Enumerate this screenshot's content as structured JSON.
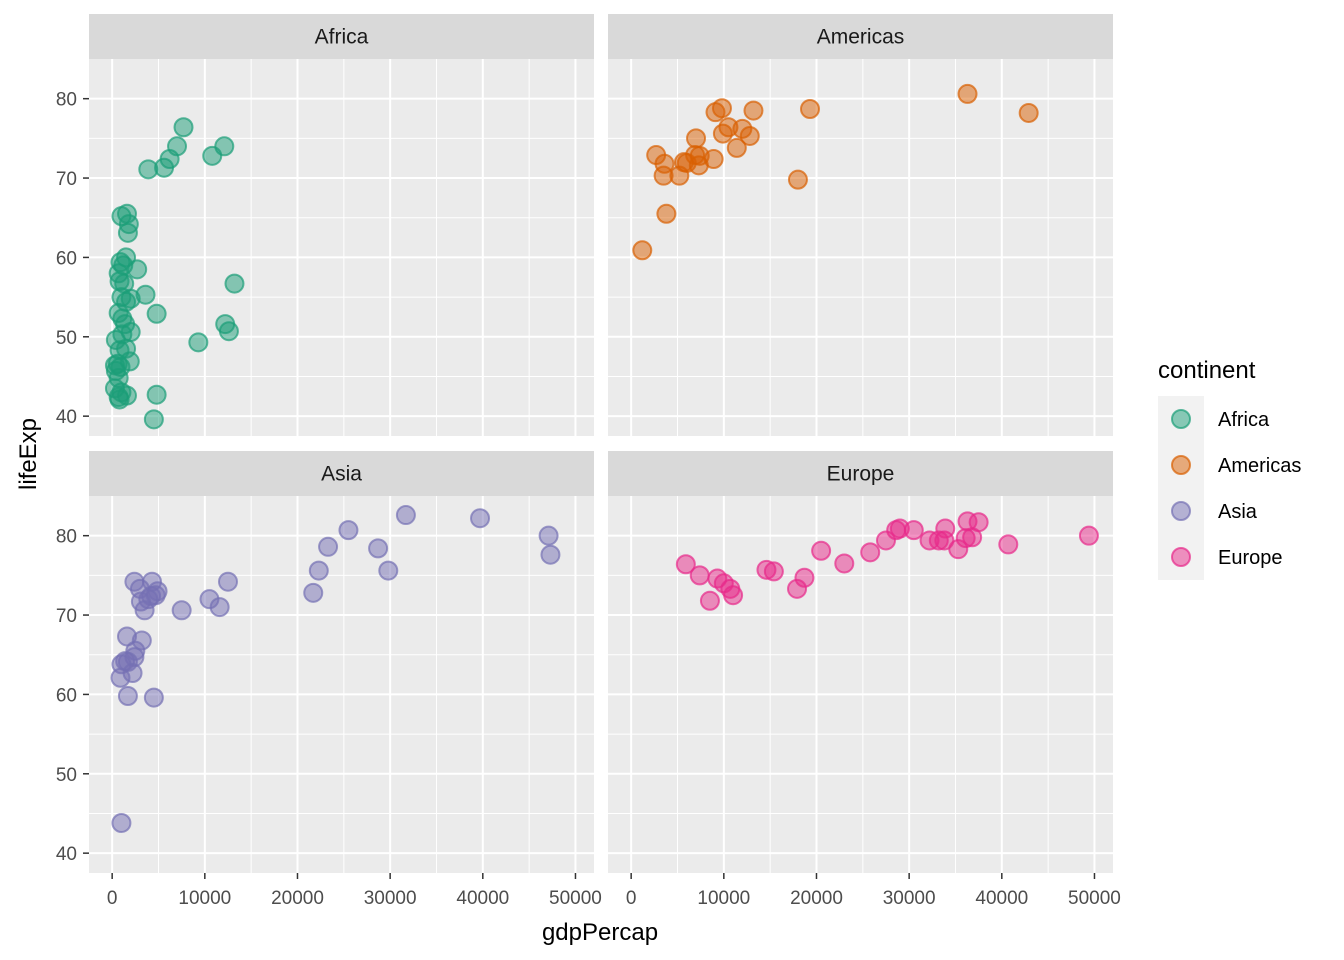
{
  "chart_data": {
    "type": "scatter",
    "x_label": "gdpPercap",
    "y_label": "lifeExp",
    "xlim": [
      -2500,
      52000
    ],
    "ylim": [
      37.5,
      85
    ],
    "x_ticks": [
      0,
      10000,
      20000,
      30000,
      40000,
      50000
    ],
    "x_tick_labels": [
      "0",
      "10000",
      "20000",
      "30000",
      "40000",
      "50000"
    ],
    "y_ticks": [
      40,
      50,
      60,
      70,
      80
    ],
    "y_tick_labels": [
      "40",
      "50",
      "60",
      "70",
      "80"
    ],
    "grid": true,
    "facet_by": "continent",
    "legend": {
      "title": "continent",
      "position": "right",
      "entries": [
        "Africa",
        "Americas",
        "Asia",
        "Europe"
      ]
    },
    "series": [
      {
        "name": "Africa",
        "color": "#1b9e77",
        "points": [
          [
            7700,
            76.4
          ],
          [
            7000,
            74.0
          ],
          [
            6200,
            72.4
          ],
          [
            5600,
            71.3
          ],
          [
            3900,
            71.1
          ],
          [
            10800,
            72.8
          ],
          [
            12100,
            74.0
          ],
          [
            1600,
            65.5
          ],
          [
            1000,
            65.2
          ],
          [
            1800,
            64.2
          ],
          [
            1700,
            63.1
          ],
          [
            1500,
            60.0
          ],
          [
            900,
            59.4
          ],
          [
            1200,
            59.0
          ],
          [
            2700,
            58.5
          ],
          [
            700,
            58.0
          ],
          [
            800,
            57.0
          ],
          [
            1300,
            56.7
          ],
          [
            13200,
            56.7
          ],
          [
            3600,
            55.3
          ],
          [
            1000,
            55.0
          ],
          [
            2000,
            54.8
          ],
          [
            1500,
            54.4
          ],
          [
            700,
            53.0
          ],
          [
            4800,
            52.9
          ],
          [
            1100,
            52.3
          ],
          [
            1400,
            51.6
          ],
          [
            12200,
            51.6
          ],
          [
            12600,
            50.7
          ],
          [
            2000,
            50.6
          ],
          [
            1100,
            50.3
          ],
          [
            400,
            49.6
          ],
          [
            9300,
            49.3
          ],
          [
            1500,
            48.5
          ],
          [
            800,
            48.3
          ],
          [
            1900,
            46.9
          ],
          [
            600,
            46.6
          ],
          [
            300,
            46.4
          ],
          [
            900,
            46.2
          ],
          [
            400,
            45.7
          ],
          [
            700,
            44.8
          ],
          [
            300,
            43.5
          ],
          [
            1000,
            43.0
          ],
          [
            1600,
            42.6
          ],
          [
            700,
            42.4
          ],
          [
            4800,
            42.7
          ],
          [
            800,
            42.1
          ],
          [
            4500,
            39.6
          ]
        ]
      },
      {
        "name": "Americas",
        "color": "#d95f02",
        "points": [
          [
            36300,
            80.6
          ],
          [
            42900,
            78.2
          ],
          [
            19300,
            78.7
          ],
          [
            9800,
            78.8
          ],
          [
            9100,
            78.3
          ],
          [
            13200,
            78.5
          ],
          [
            10500,
            76.4
          ],
          [
            12000,
            76.2
          ],
          [
            9900,
            75.6
          ],
          [
            12800,
            75.3
          ],
          [
            7000,
            75.0
          ],
          [
            11400,
            73.8
          ],
          [
            2700,
            72.9
          ],
          [
            6900,
            72.9
          ],
          [
            7400,
            72.8
          ],
          [
            3600,
            71.8
          ],
          [
            6000,
            71.9
          ],
          [
            8900,
            72.4
          ],
          [
            5700,
            72.0
          ],
          [
            7300,
            71.6
          ],
          [
            3500,
            70.3
          ],
          [
            5200,
            70.3
          ],
          [
            18000,
            69.8
          ],
          [
            3800,
            65.5
          ],
          [
            1200,
            60.9
          ]
        ]
      },
      {
        "name": "Asia",
        "color": "#7570b3",
        "points": [
          [
            31700,
            82.6
          ],
          [
            39700,
            82.2
          ],
          [
            25500,
            80.7
          ],
          [
            47100,
            80.0
          ],
          [
            23300,
            78.6
          ],
          [
            28700,
            78.4
          ],
          [
            47300,
            77.6
          ],
          [
            22300,
            75.6
          ],
          [
            29800,
            75.6
          ],
          [
            2400,
            74.2
          ],
          [
            4300,
            74.2
          ],
          [
            12500,
            74.2
          ],
          [
            3000,
            73.3
          ],
          [
            4900,
            73.0
          ],
          [
            4200,
            72.4
          ],
          [
            4700,
            72.5
          ],
          [
            3900,
            72.0
          ],
          [
            3100,
            71.7
          ],
          [
            10500,
            72.0
          ],
          [
            21700,
            72.8
          ],
          [
            11600,
            71.0
          ],
          [
            3500,
            70.6
          ],
          [
            7500,
            70.6
          ],
          [
            1600,
            67.3
          ],
          [
            3200,
            66.8
          ],
          [
            2500,
            65.5
          ],
          [
            2400,
            64.7
          ],
          [
            1400,
            64.2
          ],
          [
            1700,
            64.1
          ],
          [
            1000,
            63.8
          ],
          [
            2200,
            62.7
          ],
          [
            900,
            62.1
          ],
          [
            1700,
            59.8
          ],
          [
            4500,
            59.6
          ],
          [
            1000,
            43.8
          ]
        ]
      },
      {
        "name": "Europe",
        "color": "#e7298a",
        "points": [
          [
            49400,
            80.0
          ],
          [
            36300,
            81.8
          ],
          [
            37500,
            81.7
          ],
          [
            28600,
            80.7
          ],
          [
            29000,
            80.9
          ],
          [
            30500,
            80.7
          ],
          [
            33900,
            80.9
          ],
          [
            33200,
            79.4
          ],
          [
            33800,
            79.4
          ],
          [
            36100,
            79.7
          ],
          [
            36800,
            79.8
          ],
          [
            40700,
            78.9
          ],
          [
            35300,
            78.3
          ],
          [
            27500,
            79.4
          ],
          [
            32200,
            79.4
          ],
          [
            25800,
            77.9
          ],
          [
            20500,
            78.1
          ],
          [
            23000,
            76.5
          ],
          [
            5900,
            76.4
          ],
          [
            18700,
            74.7
          ],
          [
            14600,
            75.7
          ],
          [
            15400,
            75.5
          ],
          [
            7400,
            75.0
          ],
          [
            9300,
            74.6
          ],
          [
            10000,
            74.0
          ],
          [
            17900,
            73.3
          ],
          [
            10700,
            73.3
          ],
          [
            11000,
            72.5
          ],
          [
            8500,
            71.8
          ]
        ]
      }
    ]
  }
}
